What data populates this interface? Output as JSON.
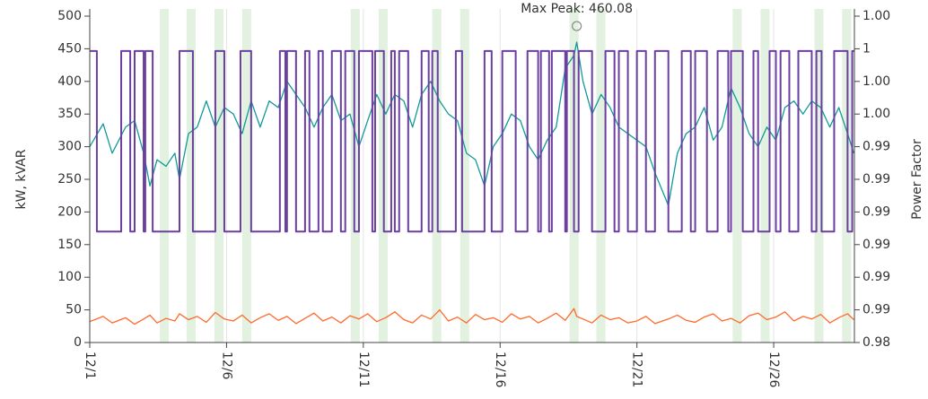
{
  "chart_data": {
    "type": "line",
    "y_label": "kW, kVAR",
    "y2_label": "Power Factor",
    "xlim": [
      1,
      28.95
    ],
    "xticks": [
      {
        "value": 1,
        "label": "12/1"
      },
      {
        "value": 6,
        "label": "12/6"
      },
      {
        "value": 11,
        "label": "12/11"
      },
      {
        "value": 16,
        "label": "12/16"
      },
      {
        "value": 21,
        "label": "12/21"
      },
      {
        "value": 26,
        "label": "12/26"
      }
    ],
    "ylim": [
      0,
      500
    ],
    "yticks": [
      0,
      50,
      100,
      150,
      200,
      250,
      300,
      350,
      400,
      450,
      500
    ],
    "y2lim": [
      0.985,
      1.0
    ],
    "y2ticks": [
      {
        "value": 0.985,
        "label": "0.98"
      },
      {
        "value": 0.9865,
        "label": "0.99"
      },
      {
        "value": 0.988,
        "label": "0.99"
      },
      {
        "value": 0.9895,
        "label": "0.99"
      },
      {
        "value": 0.991,
        "label": "0.99"
      },
      {
        "value": 0.9925,
        "label": "0.99"
      },
      {
        "value": 0.994,
        "label": "0.99"
      },
      {
        "value": 0.9955,
        "label": "1.00"
      },
      {
        "value": 0.997,
        "label": "1.00"
      },
      {
        "value": 0.9985,
        "label": "1"
      },
      {
        "value": 1.0,
        "label": "1.00"
      }
    ],
    "grid": true,
    "bands_color": "#e2f1e0",
    "bands": [
      [
        3.56,
        3.89
      ],
      [
        4.54,
        4.87
      ],
      [
        5.56,
        5.89
      ],
      [
        6.57,
        6.9
      ],
      [
        10.54,
        10.87
      ],
      [
        11.56,
        11.89
      ],
      [
        13.52,
        13.85
      ],
      [
        14.54,
        14.87
      ],
      [
        18.54,
        18.87
      ],
      [
        19.52,
        19.85
      ],
      [
        24.5,
        24.83
      ],
      [
        25.52,
        25.85
      ],
      [
        27.49,
        27.82
      ],
      [
        28.5,
        28.83
      ]
    ],
    "x": [
      1.0,
      1.49,
      1.82,
      2.31,
      2.64,
      2.97,
      3.2,
      3.46,
      3.79,
      4.11,
      4.28,
      4.61,
      4.93,
      5.26,
      5.59,
      5.92,
      6.25,
      6.57,
      6.9,
      7.23,
      7.56,
      7.89,
      8.21,
      8.54,
      8.87,
      9.2,
      9.52,
      9.85,
      10.18,
      10.51,
      10.84,
      11.16,
      11.49,
      11.82,
      12.15,
      12.48,
      12.8,
      13.13,
      13.46,
      13.79,
      14.11,
      14.44,
      14.77,
      15.1,
      15.43,
      15.75,
      16.08,
      16.41,
      16.74,
      17.07,
      17.39,
      17.72,
      18.05,
      18.38,
      18.7,
      18.8,
      19.03,
      19.36,
      19.69,
      20.02,
      20.34,
      20.67,
      21.0,
      21.33,
      21.66,
      22.15,
      22.48,
      22.8,
      23.13,
      23.46,
      23.79,
      24.11,
      24.44,
      24.77,
      25.1,
      25.43,
      25.75,
      26.08,
      26.41,
      26.74,
      27.07,
      27.39,
      27.72,
      28.05,
      28.38,
      28.7,
      28.93
    ],
    "series": [
      {
        "color": "#12999a",
        "values": [
          300,
          335,
          290,
          330,
          340,
          290,
          240,
          280,
          270,
          290,
          250,
          320,
          330,
          370,
          330,
          360,
          350,
          320,
          370,
          330,
          370,
          360,
          400,
          380,
          360,
          330,
          360,
          380,
          340,
          350,
          300,
          340,
          380,
          350,
          380,
          370,
          330,
          380,
          400,
          370,
          350,
          340,
          290,
          280,
          240,
          300,
          320,
          350,
          340,
          300,
          280,
          310,
          330,
          420,
          440,
          460.08,
          400,
          350,
          380,
          360,
          330,
          320,
          310,
          300,
          260,
          210,
          290,
          320,
          330,
          360,
          310,
          330,
          390,
          360,
          320,
          300,
          330,
          310,
          360,
          370,
          350,
          370,
          360,
          330,
          360,
          320,
          290
        ]
      },
      {
        "color": "#ff6a2c",
        "values": [
          32,
          40,
          30,
          38,
          28,
          36,
          42,
          30,
          37,
          33,
          44,
          35,
          40,
          31,
          46,
          36,
          33,
          42,
          30,
          38,
          44,
          34,
          40,
          29,
          37,
          45,
          33,
          39,
          30,
          41,
          36,
          44,
          32,
          38,
          47,
          35,
          30,
          42,
          36,
          50,
          33,
          39,
          30,
          43,
          35,
          38,
          31,
          44,
          36,
          40,
          30,
          37,
          45,
          34,
          52,
          40,
          36,
          30,
          42,
          35,
          38,
          30,
          33,
          40,
          29,
          36,
          42,
          34,
          31,
          39,
          44,
          33,
          37,
          30,
          41,
          45,
          35,
          39,
          47,
          33,
          40,
          36,
          43,
          30,
          38,
          44,
          35
        ]
      },
      {
        "color": "#6b3fa0",
        "axis": "y2",
        "shape": "hv",
        "x": [
          1.0,
          1.26,
          2.15,
          2.48,
          2.64,
          2.97,
          3.03,
          3.3,
          4.28,
          4.77,
          5.59,
          5.92,
          6.51,
          6.9,
          7.95,
          8.15,
          8.21,
          8.54,
          8.87,
          9.03,
          9.36,
          9.52,
          9.85,
          10.18,
          10.34,
          10.67,
          10.84,
          11.33,
          11.43,
          11.75,
          12.02,
          12.15,
          12.31,
          12.64,
          13.13,
          13.39,
          13.52,
          13.72,
          14.38,
          14.61,
          15.43,
          15.69,
          16.08,
          16.57,
          17.0,
          17.39,
          17.49,
          17.79,
          17.89,
          18.38,
          18.44,
          18.7,
          18.87,
          19.36,
          19.85,
          20.18,
          20.34,
          20.67,
          21.0,
          21.33,
          21.66,
          22.15,
          22.64,
          22.97,
          23.13,
          23.56,
          23.95,
          24.34,
          24.44,
          24.87,
          25.26,
          25.43,
          25.85,
          26.08,
          26.25,
          26.57,
          26.9,
          27.39,
          27.56,
          27.75,
          28.21,
          28.7,
          28.87
        ],
        "values": [
          0.9984,
          0.9901,
          0.9984,
          0.9901,
          0.9984,
          0.9901,
          0.9984,
          0.9901,
          0.9984,
          0.9901,
          0.9984,
          0.9901,
          0.9984,
          0.9901,
          0.9984,
          0.9901,
          0.9984,
          0.9901,
          0.9984,
          0.9901,
          0.9984,
          0.9901,
          0.9984,
          0.9901,
          0.9984,
          0.9901,
          0.9984,
          0.9901,
          0.9984,
          0.9901,
          0.9984,
          0.9901,
          0.9984,
          0.9901,
          0.9984,
          0.9901,
          0.9984,
          0.9901,
          0.9984,
          0.9901,
          0.9984,
          0.9901,
          0.9984,
          0.9901,
          0.9984,
          0.9901,
          0.9984,
          0.9901,
          0.9984,
          0.9901,
          0.9984,
          0.9901,
          0.9984,
          0.9901,
          0.9984,
          0.9901,
          0.9984,
          0.9901,
          0.9984,
          0.9901,
          0.9984,
          0.9901,
          0.9984,
          0.9901,
          0.9984,
          0.9901,
          0.9984,
          0.9901,
          0.9984,
          0.9901,
          0.9984,
          0.9901,
          0.9984,
          0.9901,
          0.9984,
          0.9901,
          0.9984,
          0.9901,
          0.9984,
          0.9901,
          0.9984,
          0.9901,
          0.9984
        ]
      }
    ],
    "annotations": [
      {
        "text": "Max Peak: 460.08",
        "x": 18.8,
        "y": 460.08
      }
    ]
  }
}
